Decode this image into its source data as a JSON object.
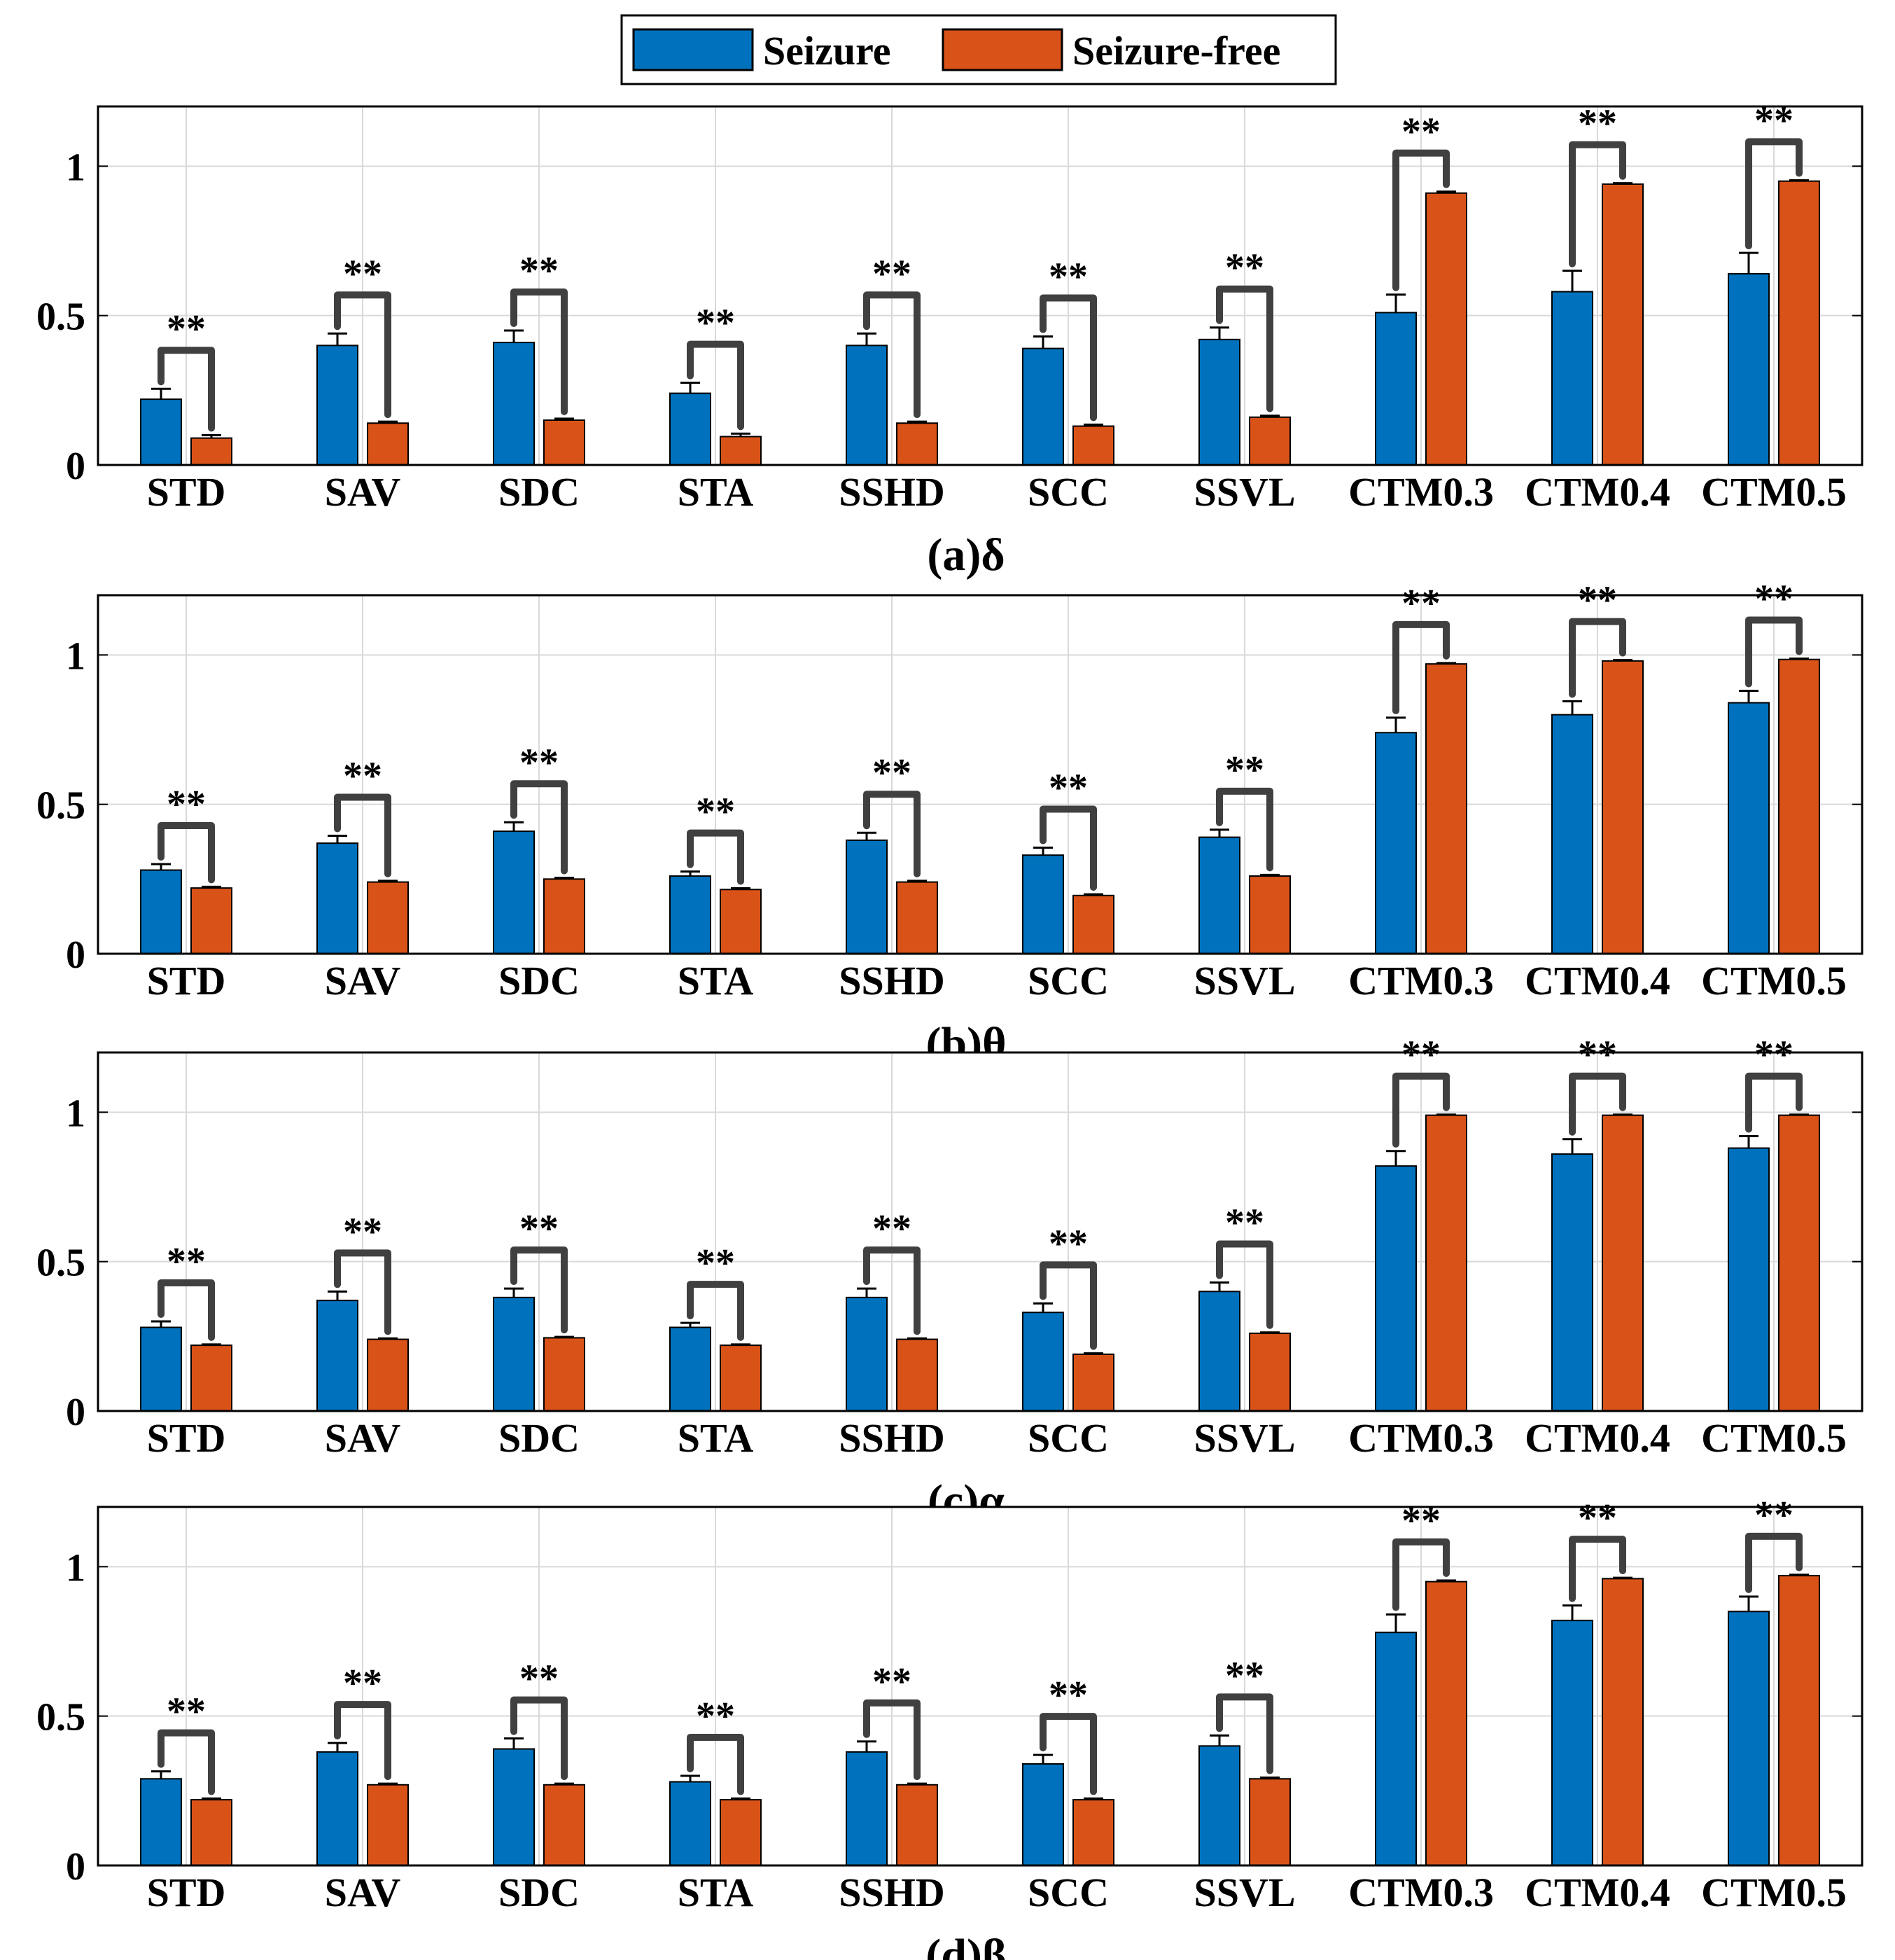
{
  "colors": {
    "seizure": "#0072BD",
    "seizure_free": "#D95319",
    "grid": "#d9d9d9",
    "bracket": "#404040",
    "axis": "#000000"
  },
  "legend": {
    "items": [
      {
        "label": "Seizure",
        "color": "#0072BD"
      },
      {
        "label": "Seizure-free",
        "color": "#D95319"
      }
    ]
  },
  "chart_data": [
    {
      "type": "bar",
      "title": "(a)δ",
      "categories": [
        "STD",
        "SAV",
        "SDC",
        "STA",
        "SSHD",
        "SCC",
        "SSVL",
        "CTM0.3",
        "CTM0.4",
        "CTM0.5"
      ],
      "ylim": [
        0,
        1.2
      ],
      "yticks": [
        0,
        0.5,
        1
      ],
      "ytick_labels": [
        "0",
        "0.5",
        "1"
      ],
      "grid": true,
      "significance_label": "**",
      "series": [
        {
          "name": "Seizure",
          "values": [
            0.22,
            0.4,
            0.41,
            0.24,
            0.4,
            0.39,
            0.42,
            0.51,
            0.58,
            0.64
          ],
          "errors": [
            0.035,
            0.04,
            0.04,
            0.035,
            0.04,
            0.04,
            0.04,
            0.06,
            0.07,
            0.07
          ]
        },
        {
          "name": "Seizure-free",
          "values": [
            0.09,
            0.14,
            0.15,
            0.095,
            0.14,
            0.13,
            0.16,
            0.91,
            0.94,
            0.95
          ],
          "errors": [
            0.01,
            0.005,
            0.005,
            0.01,
            0.005,
            0.005,
            0.005,
            0.005,
            0.003,
            0.003
          ]
        }
      ]
    },
    {
      "type": "bar",
      "title": "(b)θ",
      "categories": [
        "STD",
        "SAV",
        "SDC",
        "STA",
        "SSHD",
        "SCC",
        "SSVL",
        "CTM0.3",
        "CTM0.4",
        "CTM0.5"
      ],
      "ylim": [
        0,
        1.2
      ],
      "yticks": [
        0,
        0.5,
        1
      ],
      "ytick_labels": [
        "0",
        "0.5",
        "1"
      ],
      "grid": true,
      "significance_label": "**",
      "series": [
        {
          "name": "Seizure",
          "values": [
            0.28,
            0.37,
            0.41,
            0.26,
            0.38,
            0.33,
            0.39,
            0.74,
            0.8,
            0.84
          ],
          "errors": [
            0.02,
            0.025,
            0.03,
            0.015,
            0.025,
            0.025,
            0.025,
            0.05,
            0.045,
            0.04
          ]
        },
        {
          "name": "Seizure-free",
          "values": [
            0.22,
            0.24,
            0.25,
            0.215,
            0.24,
            0.195,
            0.26,
            0.97,
            0.98,
            0.985
          ],
          "errors": [
            0.004,
            0.004,
            0.004,
            0.004,
            0.004,
            0.004,
            0.004,
            0.003,
            0.003,
            0.003
          ]
        }
      ]
    },
    {
      "type": "bar",
      "title": "(c)α",
      "categories": [
        "STD",
        "SAV",
        "SDC",
        "STA",
        "SSHD",
        "SCC",
        "SSVL",
        "CTM0.3",
        "CTM0.4",
        "CTM0.5"
      ],
      "ylim": [
        0,
        1.2
      ],
      "yticks": [
        0,
        0.5,
        1
      ],
      "ytick_labels": [
        "0",
        "0.5",
        "1"
      ],
      "grid": true,
      "significance_label": "**",
      "series": [
        {
          "name": "Seizure",
          "values": [
            0.28,
            0.37,
            0.38,
            0.28,
            0.38,
            0.33,
            0.4,
            0.82,
            0.86,
            0.88
          ],
          "errors": [
            0.02,
            0.03,
            0.03,
            0.015,
            0.03,
            0.03,
            0.03,
            0.05,
            0.05,
            0.04
          ]
        },
        {
          "name": "Seizure-free",
          "values": [
            0.22,
            0.24,
            0.245,
            0.22,
            0.24,
            0.19,
            0.26,
            0.99,
            0.99,
            0.99
          ],
          "errors": [
            0.003,
            0.003,
            0.003,
            0.003,
            0.003,
            0.003,
            0.003,
            0.002,
            0.002,
            0.002
          ]
        }
      ]
    },
    {
      "type": "bar",
      "title": "(d)β",
      "categories": [
        "STD",
        "SAV",
        "SDC",
        "STA",
        "SSHD",
        "SCC",
        "SSVL",
        "CTM0.3",
        "CTM0.4",
        "CTM0.5"
      ],
      "ylim": [
        0,
        1.2
      ],
      "yticks": [
        0,
        0.5,
        1
      ],
      "ytick_labels": [
        "0",
        "0.5",
        "1"
      ],
      "grid": true,
      "significance_label": "**",
      "series": [
        {
          "name": "Seizure",
          "values": [
            0.29,
            0.38,
            0.39,
            0.28,
            0.38,
            0.34,
            0.4,
            0.78,
            0.82,
            0.85
          ],
          "errors": [
            0.025,
            0.03,
            0.035,
            0.02,
            0.035,
            0.03,
            0.035,
            0.06,
            0.05,
            0.05
          ]
        },
        {
          "name": "Seizure-free",
          "values": [
            0.22,
            0.27,
            0.27,
            0.22,
            0.27,
            0.22,
            0.29,
            0.95,
            0.96,
            0.97
          ],
          "errors": [
            0.004,
            0.004,
            0.004,
            0.004,
            0.004,
            0.004,
            0.004,
            0.004,
            0.003,
            0.003
          ]
        }
      ]
    }
  ]
}
